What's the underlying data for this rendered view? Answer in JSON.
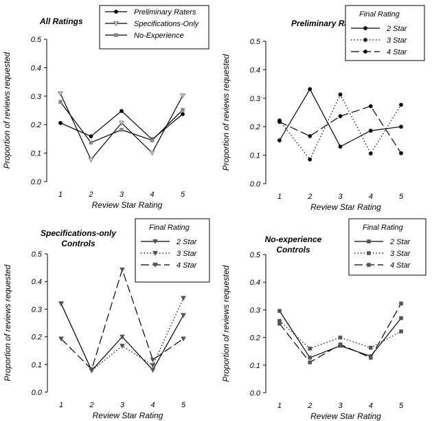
{
  "chart_data": [
    {
      "type": "line",
      "title": "All Ratings",
      "xlabel": "Review Star Rating",
      "ylabel": "Proportion of reviews requested",
      "x": [
        1,
        2,
        3,
        4,
        5
      ],
      "ylim": [
        0,
        0.5
      ],
      "yticks": [
        "0.0",
        "0.1",
        "0.2",
        "0.3",
        "0.4",
        "0.5"
      ],
      "legend_title": "",
      "legend_position": "top-center",
      "series": [
        {
          "name": "Preliminary Raters",
          "values": [
            0.206,
            0.159,
            0.248,
            0.148,
            0.237
          ],
          "color": "#000000",
          "dash": "",
          "marker": "circle"
        },
        {
          "name": "Specifications-Only",
          "values": [
            0.309,
            0.077,
            0.206,
            0.101,
            0.302
          ],
          "color": "#000000",
          "dash": "",
          "marker": "triangle"
        },
        {
          "name": "No-Experience",
          "values": [
            0.28,
            0.137,
            0.182,
            0.145,
            0.252
          ],
          "color": "#000000",
          "dash": "",
          "marker": "square"
        }
      ]
    },
    {
      "type": "line",
      "title": "Preliminary Raters",
      "xlabel": "Review Star Rating",
      "ylabel": "Proportion of reviews requested",
      "x": [
        1,
        2,
        3,
        4,
        5
      ],
      "ylim": [
        0,
        0.5
      ],
      "yticks": [
        "0.0",
        "0.1",
        "0.2",
        "0.3",
        "0.4",
        "0.5"
      ],
      "legend_title": "Final Rating",
      "legend_position": "top-right",
      "series": [
        {
          "name": "2 Star",
          "values": [
            0.152,
            0.332,
            0.13,
            0.186,
            0.2
          ],
          "color": "#000000",
          "dash": "",
          "marker": "circle"
        },
        {
          "name": "3 Star",
          "values": [
            0.222,
            0.085,
            0.313,
            0.106,
            0.277
          ],
          "color": "#000000",
          "dash": "1.5,3",
          "marker": "circle"
        },
        {
          "name": "4 Star",
          "values": [
            0.217,
            0.167,
            0.237,
            0.272,
            0.107
          ],
          "color": "#000000",
          "dash": "12,5",
          "marker": "circle"
        }
      ]
    },
    {
      "type": "line",
      "title": "Specifications-only Controls",
      "title_lines": [
        "Specifications-only",
        "Controls"
      ],
      "xlabel": "Review Star Rating",
      "ylabel": "Proportion of reviews requested",
      "x": [
        1,
        2,
        3,
        4,
        5
      ],
      "ylim": [
        0,
        0.5
      ],
      "yticks": [
        "0.0",
        "0.1",
        "0.2",
        "0.3",
        "0.4",
        "0.5"
      ],
      "legend_title": "Final Rating",
      "legend_position": "top-right",
      "series": [
        {
          "name": "2 Star",
          "values": [
            0.32,
            0.078,
            0.2,
            0.08,
            0.278
          ],
          "color": "#000000",
          "dash": "",
          "marker": "triangle"
        },
        {
          "name": "3 Star",
          "values": [
            0.32,
            0.078,
            0.167,
            0.097,
            0.34
          ],
          "color": "#000000",
          "dash": "1.5,3",
          "marker": "triangle"
        },
        {
          "name": "4 Star",
          "values": [
            0.193,
            0.082,
            0.443,
            0.117,
            0.193
          ],
          "color": "#000000",
          "dash": "12,5",
          "marker": "triangle"
        }
      ]
    },
    {
      "type": "line",
      "title": "No-experience Controls",
      "title_lines": [
        "No-experience",
        "Controls"
      ],
      "xlabel": "Review Star Rating",
      "ylabel": "Proportion of reviews requested",
      "x": [
        1,
        2,
        3,
        4,
        5
      ],
      "ylim": [
        0,
        0.5
      ],
      "yticks": [
        "0.0",
        "0.1",
        "0.2",
        "0.3",
        "0.4",
        "0.5"
      ],
      "legend_title": "Final Rating",
      "legend_position": "top-right",
      "series": [
        {
          "name": "2 Star",
          "values": [
            0.296,
            0.127,
            0.17,
            0.132,
            0.27
          ],
          "color": "#000000",
          "dash": "",
          "marker": "square"
        },
        {
          "name": "3 Star",
          "values": [
            0.26,
            0.16,
            0.2,
            0.163,
            0.222
          ],
          "color": "#000000",
          "dash": "1.5,3",
          "marker": "square"
        },
        {
          "name": "4 Star",
          "values": [
            0.25,
            0.11,
            0.175,
            0.127,
            0.323
          ],
          "color": "#000000",
          "dash": "12,5",
          "marker": "square"
        }
      ]
    }
  ]
}
